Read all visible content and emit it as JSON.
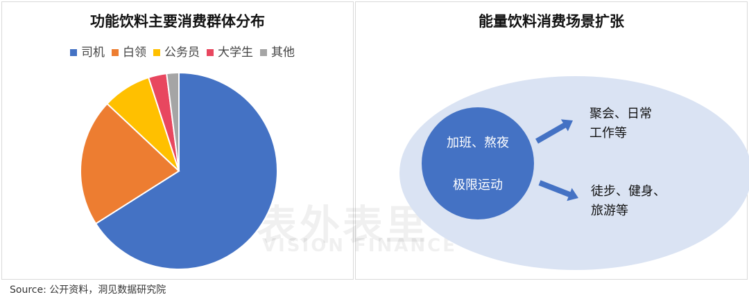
{
  "chart_data": [
    {
      "type": "pie",
      "title": "功能饮料主要消费群体分布",
      "legend_position": "top",
      "categories": [
        "司机",
        "白领",
        "公务员",
        "大学生",
        "其他"
      ],
      "values": [
        66,
        21,
        8,
        3,
        2
      ],
      "colors": [
        "#4472c4",
        "#ed7d31",
        "#ffc000",
        "#e8475f",
        "#a5a5a5"
      ]
    },
    {
      "type": "diagram",
      "title": "能量饮料消费场景扩张",
      "center_lines": [
        "加班、熬夜",
        "极限运动"
      ],
      "outcomes": [
        [
          "聚会、日常",
          "工作等"
        ],
        [
          "徒步、健身、",
          "旅游等"
        ]
      ],
      "colors": {
        "ellipse": "#dae3f3",
        "circle": "#4472c4",
        "arrow": "#4472c4"
      }
    }
  ],
  "watermark": {
    "cn": "表外表里",
    "en": "VISION FINANCE"
  },
  "source": "Source:  公开资料，洞见数据研究院"
}
